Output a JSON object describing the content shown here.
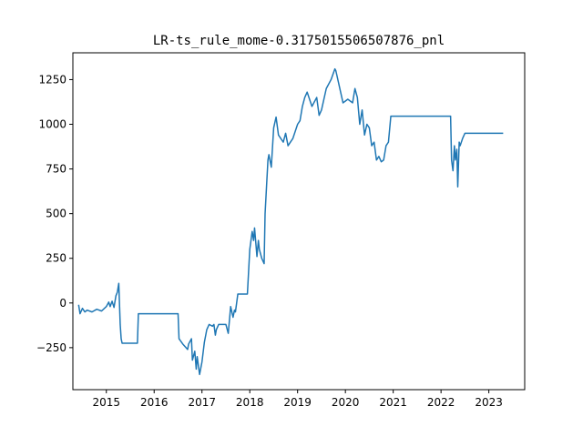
{
  "chart_data": {
    "type": "line",
    "title": "LR-ts_rule_mome-0.3175015506507876_pnl",
    "xlabel": "",
    "ylabel": "",
    "xlim": [
      2014.3,
      2023.75
    ],
    "ylim": [
      -485,
      1400
    ],
    "x_ticks": [
      2015,
      2016,
      2017,
      2018,
      2019,
      2020,
      2021,
      2022,
      2023
    ],
    "x_tick_labels": [
      "2015",
      "2016",
      "2017",
      "2018",
      "2019",
      "2020",
      "2021",
      "2022",
      "2023"
    ],
    "y_ticks": [
      -250,
      0,
      250,
      500,
      750,
      1000,
      1250
    ],
    "y_tick_labels": [
      "−250",
      "0",
      "250",
      "500",
      "750",
      "1000",
      "1250"
    ],
    "grid": false,
    "legend": "none",
    "series_color": "#1f77b4",
    "series": [
      {
        "x": [
          2014.42,
          2014.45,
          2014.5,
          2014.55,
          2014.6,
          2014.7,
          2014.8,
          2014.9,
          2015.0,
          2015.05,
          2015.08,
          2015.12,
          2015.16,
          2015.2,
          2015.23,
          2015.26,
          2015.29,
          2015.31,
          2015.33,
          2015.37,
          2015.42,
          2015.5,
          2015.6,
          2015.65,
          2015.67,
          2016.0,
          2016.5,
          2016.52,
          2016.6,
          2016.7,
          2016.72,
          2016.78,
          2016.8,
          2016.85,
          2016.88,
          2016.9,
          2016.95,
          2017.0,
          2017.05,
          2017.1,
          2017.15,
          2017.22,
          2017.25,
          2017.28,
          2017.3,
          2017.35,
          2017.5,
          2017.55,
          2017.6,
          2017.65,
          2017.68,
          2017.7,
          2017.75,
          2017.9,
          2017.95,
          2018.0,
          2018.05,
          2018.08,
          2018.1,
          2018.15,
          2018.18,
          2018.2,
          2018.25,
          2018.3,
          2018.32,
          2018.35,
          2018.38,
          2018.4,
          2018.45,
          2018.5,
          2018.55,
          2018.6,
          2018.7,
          2018.75,
          2018.8,
          2018.9,
          2019.0,
          2019.05,
          2019.1,
          2019.15,
          2019.2,
          2019.3,
          2019.4,
          2019.45,
          2019.5,
          2019.6,
          2019.7,
          2019.78,
          2019.8,
          2019.95,
          2020.0,
          2020.05,
          2020.15,
          2020.2,
          2020.25,
          2020.3,
          2020.35,
          2020.4,
          2020.45,
          2020.5,
          2020.55,
          2020.6,
          2020.65,
          2020.7,
          2020.75,
          2020.8,
          2020.85,
          2020.9,
          2020.95,
          2022.2,
          2022.22,
          2022.25,
          2022.28,
          2022.3,
          2022.33,
          2022.35,
          2022.38,
          2022.4,
          2022.45,
          2022.5,
          2022.6,
          2023.3
        ],
        "y": [
          -10,
          -60,
          -30,
          -50,
          -40,
          -50,
          -35,
          -45,
          -20,
          5,
          -20,
          10,
          -25,
          40,
          60,
          110,
          -120,
          -200,
          -225,
          -225,
          -225,
          -225,
          -225,
          -225,
          -60,
          -60,
          -60,
          -200,
          -230,
          -260,
          -230,
          -200,
          -320,
          -270,
          -370,
          -300,
          -400,
          -330,
          -220,
          -150,
          -120,
          -130,
          -120,
          -180,
          -150,
          -120,
          -120,
          -170,
          -20,
          -80,
          -40,
          -50,
          50,
          50,
          50,
          300,
          400,
          350,
          420,
          260,
          350,
          300,
          250,
          220,
          500,
          650,
          800,
          830,
          760,
          980,
          1040,
          940,
          900,
          950,
          880,
          920,
          1000,
          1020,
          1100,
          1150,
          1180,
          1100,
          1150,
          1050,
          1080,
          1200,
          1250,
          1310,
          1300,
          1120,
          1130,
          1140,
          1120,
          1200,
          1150,
          1000,
          1080,
          940,
          1000,
          980,
          880,
          900,
          800,
          820,
          790,
          800,
          880,
          900,
          1045,
          1045,
          800,
          740,
          880,
          800,
          860,
          650,
          900,
          880,
          920,
          950,
          950,
          950
        ]
      }
    ]
  }
}
